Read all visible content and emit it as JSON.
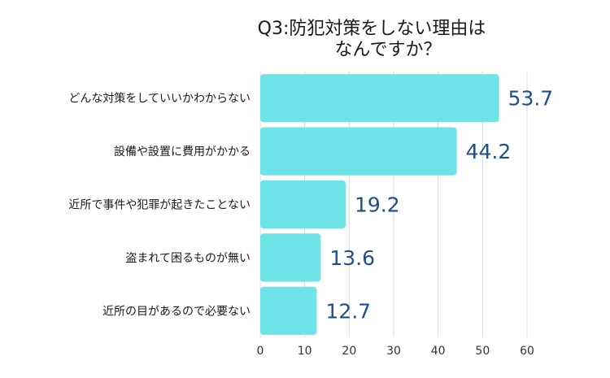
{
  "chart_data": {
    "type": "bar",
    "orientation": "horizontal",
    "title_lines": [
      "Q3:防犯対策をしない理由は",
      "なんですか？"
    ],
    "categories": [
      "どんな対策をしていいかわからない",
      "設備や設置に費用がかかる",
      "近所で事件や犯罪が起きたことない",
      "盗まれて困るものが無い",
      "近所の目があるので必要ない"
    ],
    "values": [
      53.7,
      44.2,
      19.2,
      13.6,
      12.7
    ],
    "value_labels": [
      "53.7",
      "44.2",
      "19.2",
      "13.6",
      "12.7"
    ],
    "xlim": [
      0,
      60
    ],
    "xticks": [
      "0",
      "10",
      "20",
      "30",
      "40",
      "50",
      "60"
    ],
    "grid": true,
    "colors": {
      "bar": "#6ee3e8",
      "value_text": "#1f4e8c",
      "grid": "#d9d9d9"
    }
  }
}
